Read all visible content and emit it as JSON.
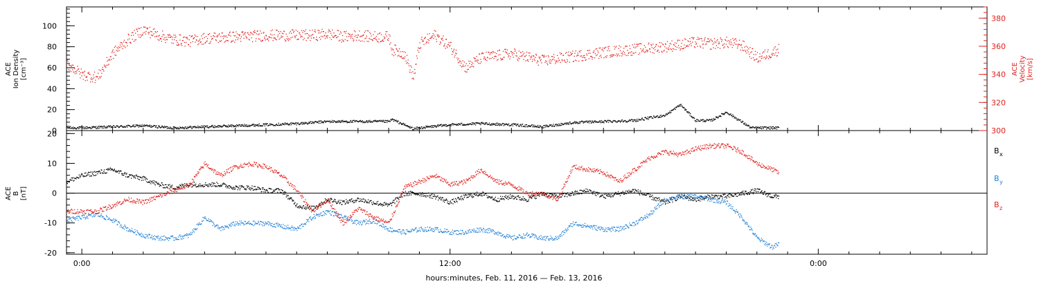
{
  "figure": {
    "x_axis_title": "hours:minutes, Feb. 11, 2016 — Feb. 13, 2016",
    "time_ticks": [
      "0:00",
      "12:00",
      "0:00"
    ]
  },
  "colors": {
    "black": "#000000",
    "red": "#e0201b",
    "blue": "#1f7fd6"
  },
  "chart_data": [
    {
      "type": "scatter",
      "title": "",
      "x_unit": "hours since Feb. 11, 2016 0:00",
      "xlim": [
        -0.5,
        29.5
      ],
      "left_axis": {
        "label_lines": [
          "ACE",
          "Ion Density"
        ],
        "unit": "[cm⁻³]",
        "ylim": [
          0,
          118
        ],
        "ticks": [
          0,
          20,
          40,
          60,
          80,
          100
        ]
      },
      "right_axis": {
        "label_lines": [
          "ACE",
          "Velocity"
        ],
        "unit": "[km/s]",
        "ylim": [
          300,
          388
        ],
        "ticks": [
          300,
          320,
          340,
          360,
          380
        ]
      },
      "series": [
        {
          "name": "",
          "axis": "left",
          "color": "#000000",
          "x": [
            -0.5,
            0,
            1,
            2,
            3,
            4,
            5,
            6,
            7,
            8,
            9,
            10,
            10.1,
            10.8,
            11,
            12,
            13,
            14,
            15,
            16,
            17,
            18,
            19,
            19.5,
            20,
            20.5,
            21,
            21.8,
            22,
            22.7
          ],
          "y": [
            3,
            3,
            4,
            5,
            3,
            4,
            5,
            6,
            7,
            9,
            9,
            9,
            11,
            2,
            3,
            6,
            7,
            6,
            4,
            8,
            9,
            10,
            15,
            25,
            10,
            10,
            18,
            3,
            3,
            3
          ]
        },
        {
          "name": "",
          "axis": "right",
          "color": "#e0201b",
          "x": [
            -0.5,
            0,
            0.5,
            1,
            1.5,
            2,
            2.5,
            3,
            3.5,
            4,
            5,
            6,
            7,
            7.5,
            8,
            8.5,
            9,
            9.5,
            10,
            10.1,
            10.5,
            10.8,
            11,
            11.5,
            12,
            12.5,
            13,
            14,
            15,
            16,
            17,
            18,
            19,
            20,
            20.5,
            21,
            21.5,
            22,
            22.5,
            22.7
          ],
          "y": [
            348,
            340,
            338,
            355,
            365,
            372,
            368,
            365,
            364,
            366,
            367,
            368,
            368,
            368,
            369,
            367,
            368,
            367,
            367,
            358,
            355,
            338,
            362,
            368,
            360,
            345,
            352,
            355,
            350,
            353,
            356,
            358,
            360,
            363,
            362,
            363,
            361,
            352,
            356,
            358
          ]
        }
      ]
    },
    {
      "type": "scatter",
      "title": "",
      "x_unit": "hours since Feb. 11, 2016 0:00",
      "xlim": [
        -0.5,
        29.5
      ],
      "left_axis": {
        "label_lines": [
          "ACE",
          "B"
        ],
        "unit": "[nT]",
        "ylim": [
          -20.5,
          21
        ],
        "ticks": [
          -20,
          -10,
          0,
          10,
          20
        ]
      },
      "legend": {
        "placement": "right",
        "entries": [
          {
            "label": "B",
            "sub": "x",
            "color": "#000000"
          },
          {
            "label": "B",
            "sub": "y",
            "color": "#1f7fd6"
          },
          {
            "label": "B",
            "sub": "z",
            "color": "#e0201b"
          }
        ]
      },
      "series": [
        {
          "name": "Bx",
          "color": "#000000",
          "x": [
            -0.5,
            0,
            0.5,
            1,
            1.5,
            2,
            2.5,
            3,
            3.5,
            4,
            4.5,
            5,
            5.5,
            6,
            6.5,
            7,
            7.5,
            8,
            8.5,
            9,
            9.5,
            10,
            10.5,
            11,
            11.5,
            12,
            12.5,
            13,
            13.5,
            14,
            14.5,
            15,
            15.5,
            16,
            16.5,
            17,
            17.5,
            18,
            18.5,
            19,
            19.5,
            20,
            20.5,
            21,
            21.5,
            22,
            22.5,
            22.7
          ],
          "y": [
            4,
            6,
            7,
            8,
            6,
            5,
            3,
            2,
            3,
            3,
            3,
            2,
            2,
            1,
            1,
            -4,
            -5,
            -2,
            -3,
            -2,
            -3,
            -4,
            0,
            0,
            -1,
            -3,
            -1,
            0,
            -2,
            -1,
            -2,
            0,
            -1,
            0,
            1,
            -1,
            0,
            1,
            -1,
            -3,
            -1,
            -2,
            -1,
            -1,
            0,
            1,
            -1,
            -1
          ]
        },
        {
          "name": "By",
          "color": "#1f7fd6",
          "x": [
            -0.5,
            0,
            0.5,
            1,
            1.5,
            2,
            2.5,
            3,
            3.5,
            4,
            4.5,
            5,
            5.5,
            6,
            6.5,
            7,
            7.5,
            8,
            8.5,
            9,
            9.5,
            10,
            10.5,
            11,
            11.5,
            12,
            12.5,
            13,
            13.5,
            14,
            14.5,
            15,
            15.5,
            16,
            16.5,
            17,
            17.5,
            18,
            18.5,
            19,
            19.5,
            20,
            20.5,
            21,
            21.5,
            22,
            22.5,
            22.7
          ],
          "y": [
            -9,
            -8,
            -7,
            -9,
            -12,
            -14,
            -15,
            -15,
            -14,
            -8,
            -12,
            -10,
            -10,
            -10,
            -11,
            -12,
            -8,
            -6,
            -8,
            -10,
            -9,
            -12,
            -13,
            -12,
            -12,
            -13,
            -13,
            -12,
            -13,
            -15,
            -14,
            -15,
            -15,
            -10,
            -11,
            -12,
            -12,
            -10,
            -7,
            -2,
            -1,
            -1,
            -2,
            -3,
            -8,
            -15,
            -18,
            -17
          ]
        },
        {
          "name": "Bz",
          "color": "#e0201b",
          "x": [
            -0.5,
            0,
            0.5,
            1,
            1.5,
            2,
            2.5,
            3,
            3.5,
            4,
            4.5,
            5,
            5.5,
            6,
            6.5,
            7,
            7.5,
            8,
            8.5,
            9,
            9.5,
            10,
            10.5,
            11,
            11.5,
            12,
            12.5,
            13,
            13.5,
            14,
            14.5,
            15,
            15.5,
            16,
            16.5,
            17,
            17.5,
            18,
            18.5,
            19,
            19.5,
            20,
            20.5,
            21,
            21.5,
            22,
            22.5,
            22.7
          ],
          "y": [
            -6,
            -6,
            -6,
            -4,
            -2,
            -3,
            -1,
            1,
            3,
            10,
            6,
            9,
            10,
            9,
            6,
            1,
            -6,
            -2,
            -10,
            -5,
            -8,
            -10,
            2,
            4,
            6,
            3,
            4,
            8,
            4,
            3,
            0,
            0,
            -2,
            9,
            8,
            7,
            4,
            8,
            12,
            14,
            13,
            15,
            16,
            16,
            14,
            10,
            8,
            7
          ]
        }
      ]
    }
  ]
}
